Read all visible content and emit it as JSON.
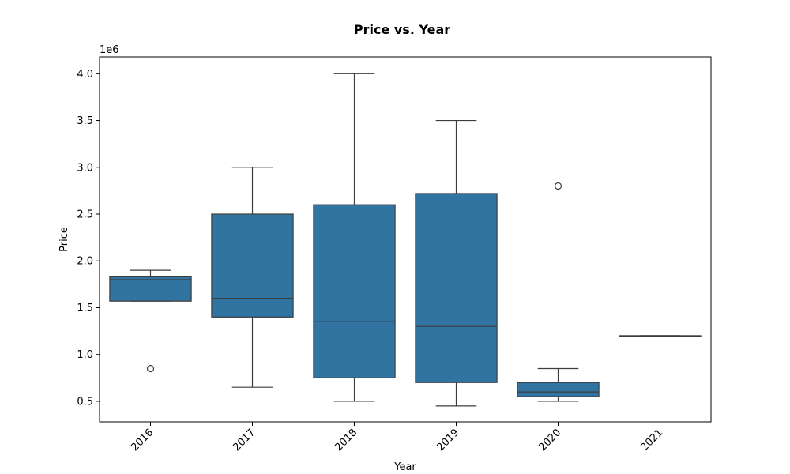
{
  "colors": {
    "box_fill": "#3274a1",
    "line": "#3d3d3d",
    "frame": "#000000",
    "outlier_fill": "#ffffff"
  },
  "chart_data": {
    "type": "box",
    "title": "Price vs. Year",
    "xlabel": "Year",
    "ylabel": "Price",
    "y_offset_label": "1e6",
    "y_scale": 1000000,
    "ylim": [
      280000,
      4180000
    ],
    "y_ticks": [
      500000,
      1000000,
      1500000,
      2000000,
      2500000,
      3000000,
      3500000,
      4000000
    ],
    "y_tick_labels": [
      "0.5",
      "1.0",
      "1.5",
      "2.0",
      "2.5",
      "3.0",
      "3.5",
      "4.0"
    ],
    "grid": false,
    "categories": [
      "2016",
      "2017",
      "2018",
      "2019",
      "2020",
      "2021"
    ],
    "boxes": [
      {
        "category": "2016",
        "whisker_low": 1570000,
        "q1": 1570000,
        "median": 1800000,
        "q3": 1830000,
        "whisker_high": 1900000,
        "outliers": [
          850000
        ]
      },
      {
        "category": "2017",
        "whisker_low": 650000,
        "q1": 1400000,
        "median": 1600000,
        "q3": 2500000,
        "whisker_high": 3000000,
        "outliers": []
      },
      {
        "category": "2018",
        "whisker_low": 500000,
        "q1": 750000,
        "median": 1350000,
        "q3": 2600000,
        "whisker_high": 4000000,
        "outliers": []
      },
      {
        "category": "2019",
        "whisker_low": 450000,
        "q1": 700000,
        "median": 1300000,
        "q3": 2720000,
        "whisker_high": 3500000,
        "outliers": []
      },
      {
        "category": "2020",
        "whisker_low": 500000,
        "q1": 550000,
        "median": 600000,
        "q3": 700000,
        "whisker_high": 850000,
        "outliers": [
          2800000
        ]
      },
      {
        "category": "2021",
        "whisker_low": 1200000,
        "q1": 1200000,
        "median": 1200000,
        "q3": 1200000,
        "whisker_high": 1200000,
        "outliers": []
      }
    ]
  }
}
